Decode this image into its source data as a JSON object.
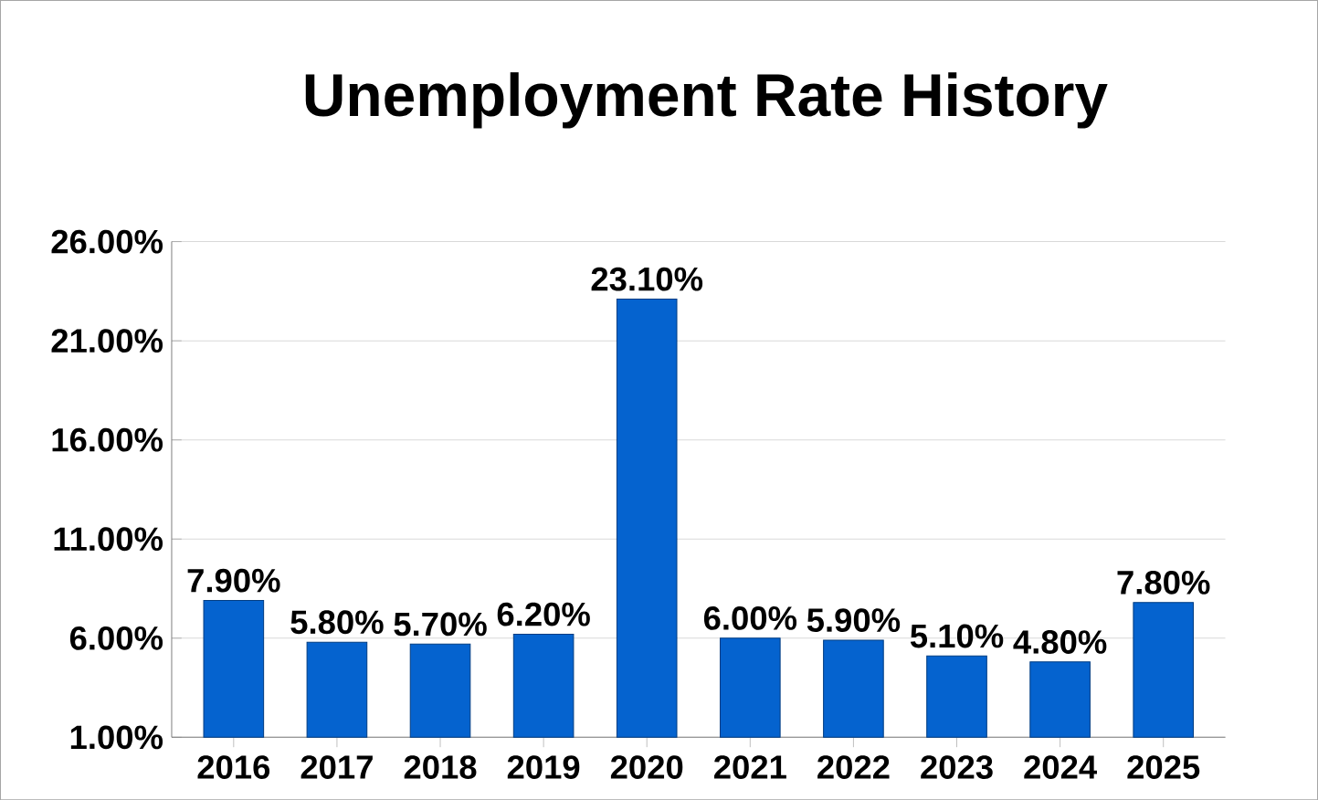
{
  "chart_data": {
    "type": "bar",
    "title": "Unemployment Rate History",
    "categories": [
      "2016",
      "2017",
      "2018",
      "2019",
      "2020",
      "2021",
      "2022",
      "2023",
      "2024",
      "2025"
    ],
    "values": [
      7.9,
      5.8,
      5.7,
      6.2,
      23.1,
      6.0,
      5.9,
      5.1,
      4.8,
      7.8
    ],
    "value_labels": [
      "7.90%",
      "5.80%",
      "5.70%",
      "6.20%",
      "23.10%",
      "6.00%",
      "5.90%",
      "5.10%",
      "4.80%",
      "7.80%"
    ],
    "color": "#0563cf",
    "ylim": [
      1,
      26
    ],
    "yticks": [
      {
        "value": 1,
        "label": "1.00%"
      },
      {
        "value": 6,
        "label": "6.00%"
      },
      {
        "value": 11,
        "label": "11.00%"
      },
      {
        "value": 16,
        "label": "16.00%"
      },
      {
        "value": 21,
        "label": "21.00%"
      },
      {
        "value": 26,
        "label": "26.00%"
      }
    ],
    "grid": "y"
  }
}
